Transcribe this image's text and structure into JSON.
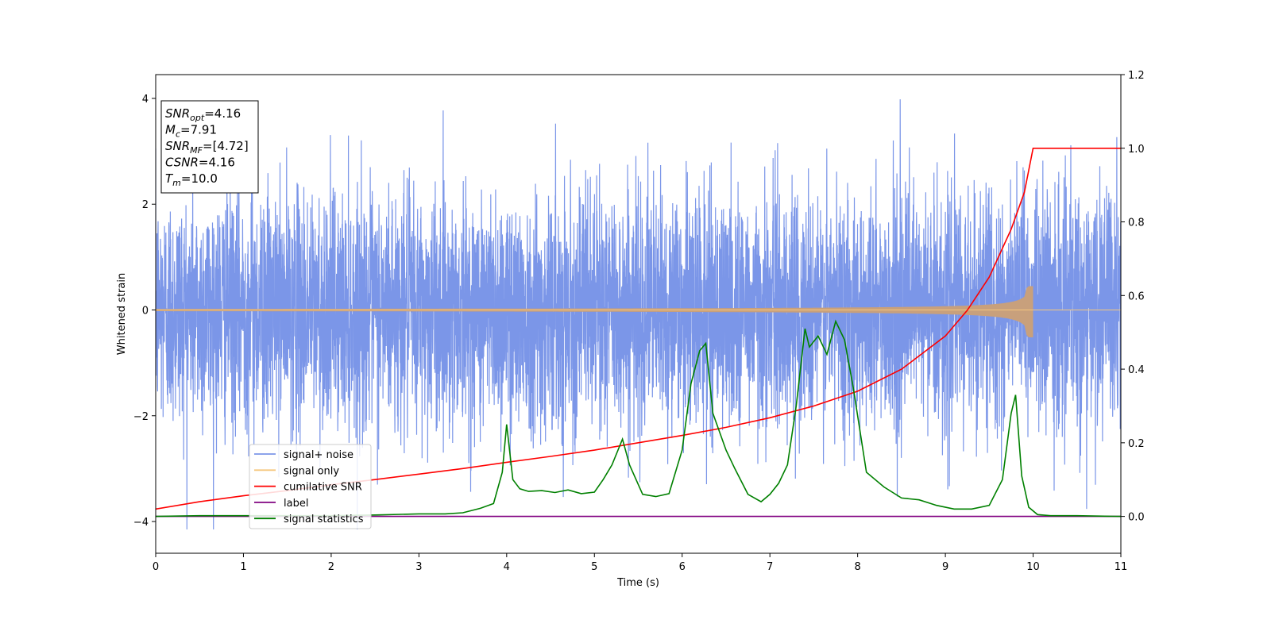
{
  "chart_data": {
    "type": "line",
    "xlabel": "Time (s)",
    "ylabel": "Whitened strain",
    "xlim": [
      0,
      11
    ],
    "ylim": [
      -4.6,
      4.45
    ],
    "y2lim": [
      -0.1,
      1.2
    ],
    "x_ticks": [
      0,
      1,
      2,
      3,
      4,
      5,
      6,
      7,
      8,
      9,
      10,
      11
    ],
    "y_ticks": [
      -4,
      -2,
      0,
      2,
      4
    ],
    "y2_ticks": [
      0.0,
      0.2,
      0.4,
      0.6,
      0.8,
      1.0,
      1.2
    ],
    "x_tick_labels": [
      "0",
      "1",
      "2",
      "3",
      "4",
      "5",
      "6",
      "7",
      "8",
      "9",
      "10",
      "11"
    ],
    "y_tick_labels": [
      "−4",
      "−2",
      "0",
      "2",
      "4"
    ],
    "y2_tick_labels": [
      "0.0",
      "0.2",
      "0.4",
      "0.6",
      "0.8",
      "1.0",
      "1.2"
    ],
    "grid": false,
    "legend_position": "lower-left",
    "annotation": {
      "lines": [
        {
          "sym": "SNR",
          "sub": "opt",
          "val": "=4.16"
        },
        {
          "sym": "M",
          "sub": "c",
          "val": "=7.91"
        },
        {
          "sym": "SNR",
          "sub": "MF",
          "val": "=[4.72]"
        },
        {
          "sym": "CSNR",
          "sub": "",
          "val": "=4.16"
        },
        {
          "sym": "T",
          "sub": "m",
          "val": "=10.0"
        }
      ]
    },
    "series": [
      {
        "name": "signal+ noise",
        "axis": "left",
        "color": "#7b96e8",
        "envelope": {
          "typical": 1.1,
          "peak": 2.6,
          "t_end": 11
        }
      },
      {
        "name": "signal only",
        "axis": "left",
        "color": "#f5c77e",
        "fill": "#c8a07c",
        "chirp": {
          "t_merge": 10.0,
          "amp_start": 0.02,
          "amp_end": 0.45
        }
      },
      {
        "name": "cumilative SNR",
        "axis": "right",
        "color": "#ff0000",
        "x": [
          0,
          0.5,
          1,
          1.5,
          2,
          2.5,
          3,
          3.5,
          4,
          4.5,
          5,
          5.5,
          6,
          6.5,
          7,
          7.5,
          8,
          8.5,
          9,
          9.25,
          9.5,
          9.75,
          9.9,
          10.0,
          10.5,
          11
        ],
        "y": [
          0.02,
          0.04,
          0.056,
          0.07,
          0.086,
          0.1,
          0.115,
          0.13,
          0.147,
          0.163,
          0.18,
          0.2,
          0.22,
          0.242,
          0.268,
          0.3,
          0.34,
          0.4,
          0.49,
          0.56,
          0.65,
          0.78,
          0.88,
          1.0,
          1.0,
          1.0
        ]
      },
      {
        "name": "label",
        "axis": "right",
        "color": "#800080",
        "x": [
          0,
          11
        ],
        "y": [
          0,
          0
        ]
      },
      {
        "name": "signal statistics",
        "axis": "right",
        "color": "#008000",
        "x": [
          0,
          0.5,
          1,
          1.5,
          2,
          2.5,
          3,
          3.3,
          3.5,
          3.7,
          3.85,
          3.95,
          4.0,
          4.07,
          4.15,
          4.25,
          4.4,
          4.55,
          4.7,
          4.85,
          5.0,
          5.1,
          5.2,
          5.32,
          5.4,
          5.55,
          5.7,
          5.85,
          6.0,
          6.1,
          6.2,
          6.27,
          6.35,
          6.5,
          6.6,
          6.75,
          6.9,
          7.0,
          7.1,
          7.2,
          7.3,
          7.4,
          7.45,
          7.55,
          7.65,
          7.75,
          7.85,
          7.95,
          8.1,
          8.3,
          8.5,
          8.7,
          8.9,
          9.1,
          9.3,
          9.5,
          9.65,
          9.75,
          9.8,
          9.87,
          9.95,
          10.05,
          10.2,
          10.5,
          11
        ],
        "y": [
          0.0,
          0.002,
          0.002,
          0.002,
          0.002,
          0.004,
          0.007,
          0.007,
          0.01,
          0.022,
          0.035,
          0.12,
          0.25,
          0.1,
          0.075,
          0.068,
          0.07,
          0.065,
          0.072,
          0.062,
          0.066,
          0.1,
          0.14,
          0.21,
          0.14,
          0.06,
          0.054,
          0.062,
          0.18,
          0.36,
          0.45,
          0.47,
          0.28,
          0.18,
          0.13,
          0.06,
          0.04,
          0.06,
          0.09,
          0.14,
          0.3,
          0.51,
          0.46,
          0.49,
          0.44,
          0.53,
          0.48,
          0.35,
          0.12,
          0.08,
          0.05,
          0.045,
          0.03,
          0.02,
          0.02,
          0.03,
          0.1,
          0.28,
          0.33,
          0.11,
          0.025,
          0.005,
          0.002,
          0.002,
          0.0
        ]
      }
    ]
  }
}
